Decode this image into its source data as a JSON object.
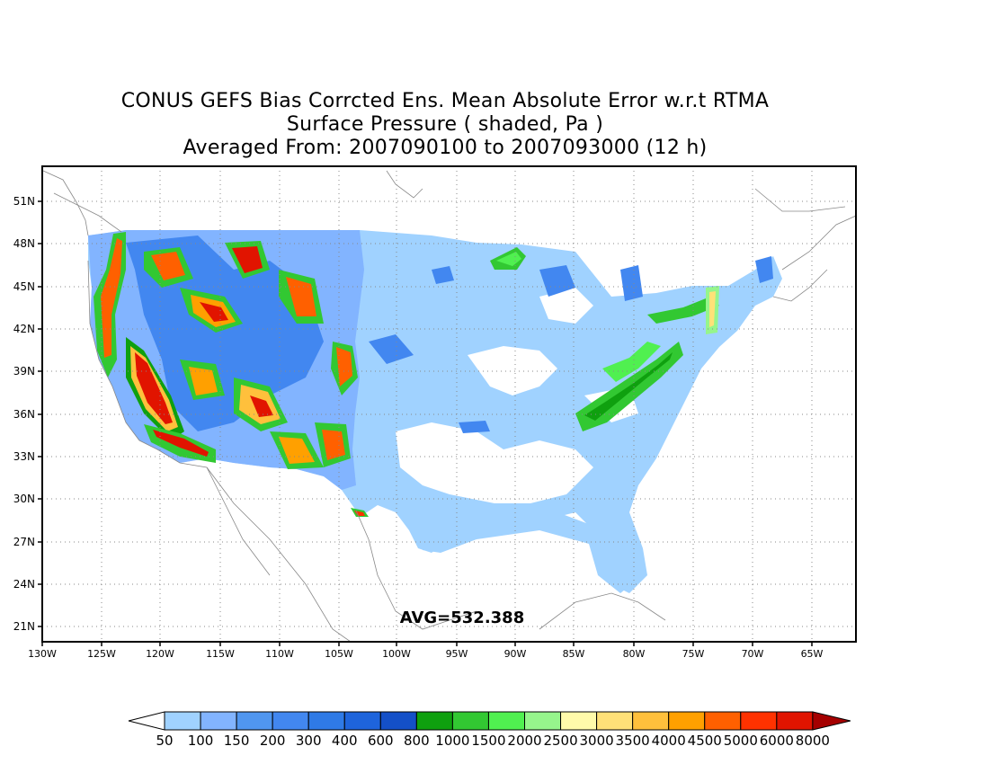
{
  "title": {
    "line1": "CONUS GEFS Bias Corrcted Ens. Mean Absolute Error w.r.t RTMA",
    "line2": "Surface Pressure ( shaded, Pa )",
    "line3": "Averaged From: 2007090100 to 2007093000 (12 h)"
  },
  "map": {
    "lat_labels": [
      "51N",
      "48N",
      "45N",
      "42N",
      "39N",
      "36N",
      "33N",
      "30N",
      "27N",
      "24N",
      "21N"
    ],
    "lon_labels": [
      "130W",
      "125W",
      "120W",
      "115W",
      "110W",
      "105W",
      "100W",
      "95W",
      "90W",
      "85W",
      "80W",
      "75W",
      "70W",
      "65W"
    ],
    "grid": true,
    "avg_text": "AVG=532.388"
  },
  "colorbar": {
    "labels": [
      "50",
      "100",
      "150",
      "200",
      "300",
      "400",
      "600",
      "800",
      "1000",
      "1500",
      "2000",
      "2500",
      "3000",
      "3500",
      "4000",
      "4500",
      "5000",
      "6000",
      "8000"
    ],
    "colors": [
      "#ffffff",
      "#a0d2ff",
      "#82b4ff",
      "#5096f0",
      "#4287f0",
      "#2f7ae6",
      "#1e64dc",
      "#1450c8",
      "#0fa00f",
      "#32c832",
      "#50f050",
      "#96f58c",
      "#fffaaa",
      "#ffe178",
      "#ffc03c",
      "#ffa000",
      "#ff6000",
      "#ff3200",
      "#e11400",
      "#a50000"
    ]
  }
}
